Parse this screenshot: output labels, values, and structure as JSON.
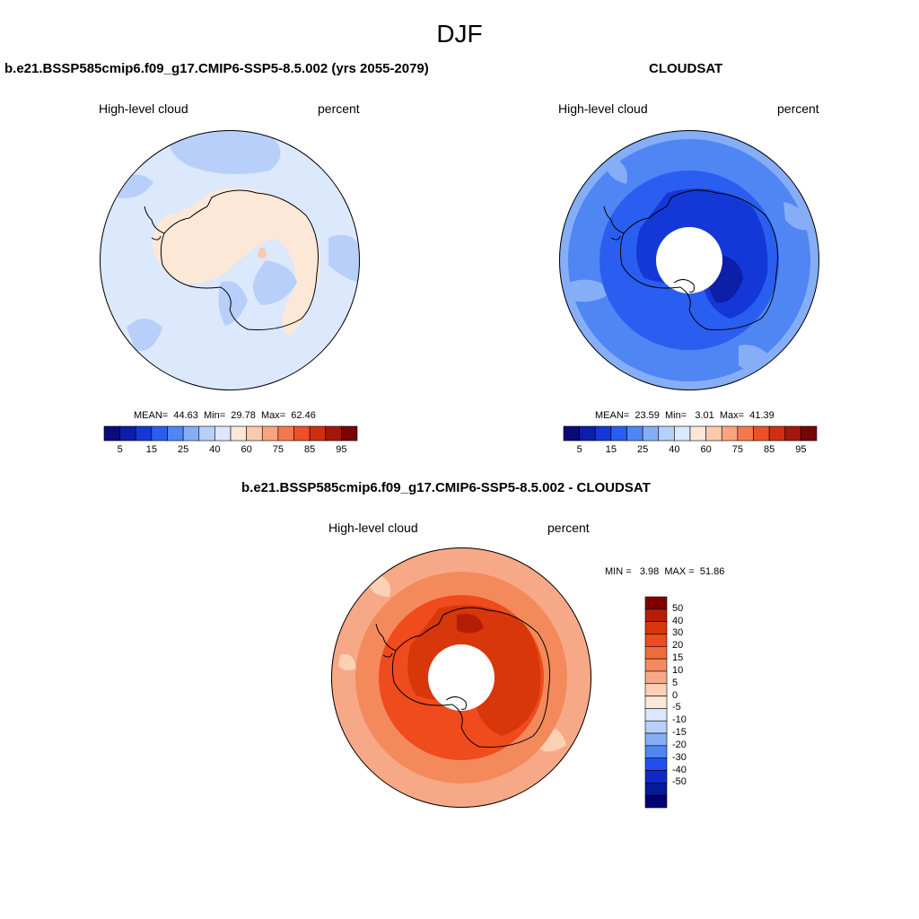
{
  "season": "DJF",
  "panels": [
    {
      "id": "model",
      "title": "b.e21.BSSP585cmip6.f09_g17.CMIP6-SSP5-8.5.002 (yrs 2055-2079)",
      "left_label": "High-level cloud",
      "right_label": "percent",
      "stats": {
        "mean_label": "MEAN=",
        "mean": "44.63",
        "min_label": "Min=",
        "min": "29.78",
        "max_label": "Max=",
        "max": "62.46"
      }
    },
    {
      "id": "obs",
      "title": "CLOUDSAT",
      "left_label": "High-level cloud",
      "right_label": "percent",
      "stats": {
        "mean_label": "MEAN=",
        "mean": "23.59",
        "min_label": "Min=",
        "min": "3.01",
        "max_label": "Max=",
        "max": "41.39"
      }
    },
    {
      "id": "diff",
      "title": "b.e21.BSSP585cmip6.f09_g17.CMIP6-SSP5-8.5.002 - CLOUDSAT",
      "left_label": "High-level cloud",
      "right_label": "percent",
      "stats": {
        "min_label": "MIN =",
        "min": "3.98",
        "max_label": "MAX =",
        "max": "51.86"
      }
    }
  ],
  "colorbar_abs": {
    "labels": [
      "5",
      "15",
      "25",
      "40",
      "60",
      "75",
      "85",
      "95"
    ],
    "colors": [
      "#0a0a78",
      "#0d1ea8",
      "#1438d8",
      "#2a5ef0",
      "#4f86f4",
      "#86aef7",
      "#b8cff9",
      "#dce8fb",
      "#fde8d8",
      "#fbc9ad",
      "#f8a47f",
      "#f4784f",
      "#ef5028",
      "#d02e12",
      "#a2180a",
      "#780505"
    ]
  },
  "colorbar_diff": {
    "labels": [
      "50",
      "40",
      "30",
      "20",
      "15",
      "10",
      "5",
      "0",
      "-5",
      "-10",
      "-15",
      "-20",
      "-30",
      "-40",
      "-50"
    ],
    "colors": [
      "#800000",
      "#b51e06",
      "#d8360b",
      "#ef4b1c",
      "#f26b3c",
      "#f48a5c",
      "#f7a987",
      "#fbd0b5",
      "#fde8d8",
      "#dce8fb",
      "#b8cff9",
      "#86aef7",
      "#4f86f4",
      "#1f4ef0",
      "#0f2ac8",
      "#061a9a",
      "#000070"
    ]
  }
}
